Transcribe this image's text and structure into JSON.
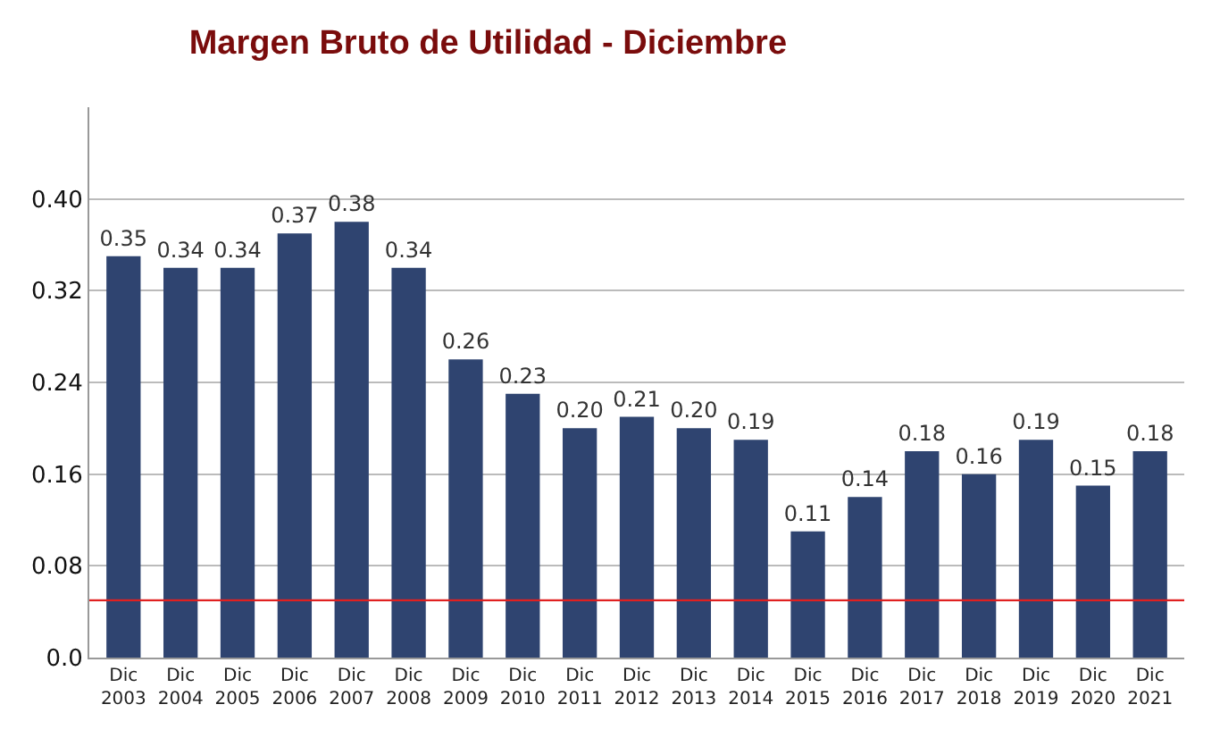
{
  "chart_data": {
    "type": "bar",
    "title": "Margen Bruto de Utilidad - Diciembre",
    "categories": [
      "Dic 2003",
      "Dic 2004",
      "Dic 2005",
      "Dic 2006",
      "Dic 2007",
      "Dic 2008",
      "Dic 2009",
      "Dic 2010",
      "Dic 2011",
      "Dic 2012",
      "Dic 2013",
      "Dic 2014",
      "Dic 2015",
      "Dic 2016",
      "Dic 2017",
      "Dic 2018",
      "Dic 2019",
      "Dic 2020",
      "Dic 2021"
    ],
    "values": [
      0.35,
      0.34,
      0.34,
      0.37,
      0.38,
      0.34,
      0.26,
      0.23,
      0.2,
      0.21,
      0.2,
      0.19,
      0.11,
      0.14,
      0.18,
      0.16,
      0.19,
      0.15,
      0.18
    ],
    "color": "#2f4470",
    "ylim": [
      0,
      0.48
    ],
    "yticks": [
      {
        "value": 0,
        "label": "0.0"
      },
      0.08,
      0.16,
      0.24,
      0.32,
      {
        "value": 0.4,
        "label": "0.40"
      }
    ],
    "value_labels": [
      "0.35",
      "0.34",
      "0.34",
      "0.37",
      "0.38",
      "0.34",
      "0.26",
      "0.23",
      "0.20",
      "0.21",
      "0.20",
      "0.19",
      "0.11",
      "0.14",
      "0.18",
      "0.16",
      "0.19",
      "0.15",
      "0.18"
    ],
    "grid": "y",
    "ref_lines": [
      {
        "axis": "y",
        "value": 0.05,
        "color": "#e02020"
      }
    ]
  }
}
